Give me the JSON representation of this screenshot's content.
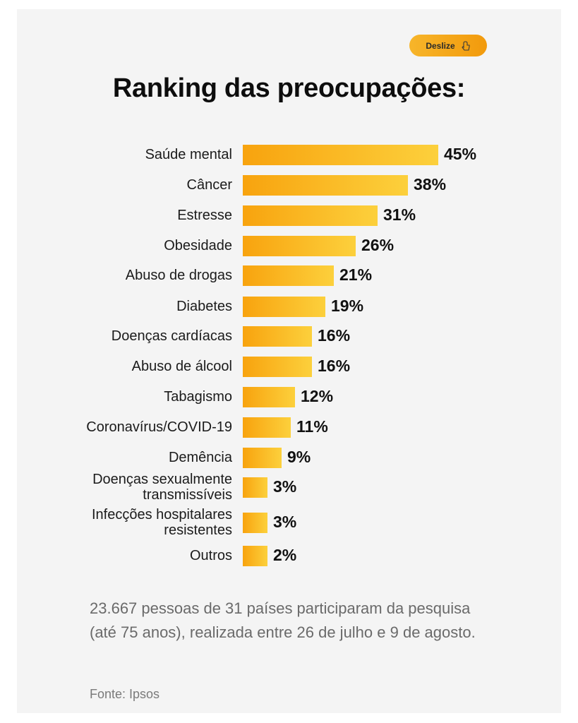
{
  "button": {
    "label": "Deslize",
    "icon": "swipe-hand-icon"
  },
  "chart_data": {
    "type": "bar",
    "orientation": "horizontal",
    "title": "Ranking das preocupações:",
    "categories": [
      "Saúde mental",
      "Câncer",
      "Estresse",
      "Obesidade",
      "Abuso de drogas",
      "Diabetes",
      "Doenças cardíacas",
      "Abuso de álcool",
      "Tabagismo",
      "Coronavírus/COVID-19",
      "Demência",
      "Doenças sexualmente transmissíveis",
      "Infecções hospitalares resistentes",
      "Outros"
    ],
    "category_lines": [
      [
        "Saúde mental"
      ],
      [
        "Câncer"
      ],
      [
        "Estresse"
      ],
      [
        "Obesidade"
      ],
      [
        "Abuso de drogas"
      ],
      [
        "Diabetes"
      ],
      [
        "Doenças cardíacas"
      ],
      [
        "Abuso de álcool"
      ],
      [
        "Tabagismo"
      ],
      [
        "Coronavírus/COVID-19"
      ],
      [
        "Demência"
      ],
      [
        "Doenças sexualmente",
        "transmissíveis"
      ],
      [
        "Infecções hospitalares",
        "resistentes"
      ],
      [
        "Outros"
      ]
    ],
    "values": [
      45,
      38,
      31,
      26,
      21,
      19,
      16,
      16,
      12,
      11,
      9,
      3,
      3,
      2
    ],
    "value_labels": [
      "45%",
      "38%",
      "31%",
      "26%",
      "21%",
      "19%",
      "16%",
      "16%",
      "12%",
      "11%",
      "9%",
      "3%",
      "3%",
      "2%"
    ],
    "unit": "%",
    "xlabel": "",
    "ylabel": "",
    "colors": {
      "bar_start": "#f8a30e",
      "bar_end": "#fcd03c"
    }
  },
  "footnote": "23.667 pessoas de 31 países participaram da pesquisa (até 75 anos), realizada entre 26 de julho e 9 de agosto.",
  "source": "Fonte: Ipsos"
}
